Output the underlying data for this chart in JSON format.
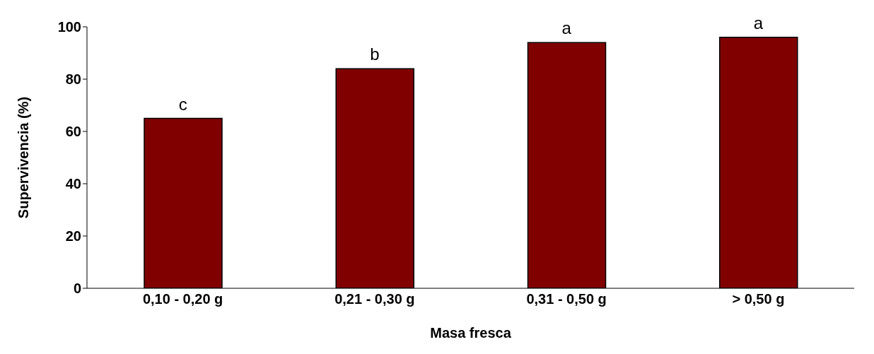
{
  "chart_data": {
    "type": "bar",
    "xlabel": "Masa fresca",
    "ylabel": "Supervivencia (%)",
    "categories": [
      "0,10 - 0,20 g",
      "0,21 - 0,30 g",
      "0,31 - 0,50 g",
      "> 0,50 g"
    ],
    "values": [
      65,
      84,
      94,
      96
    ],
    "color": "#800000",
    "ylim": [
      0,
      100
    ],
    "yticks": [
      0,
      20,
      40,
      60,
      80,
      100
    ],
    "grid": false,
    "legend": false,
    "annotations": [
      {
        "text": "c",
        "x": "0,10 - 0,20 g",
        "y": 65
      },
      {
        "text": "b",
        "x": "0,21 - 0,30 g",
        "y": 84
      },
      {
        "text": "a",
        "x": "0,31 - 0,50 g",
        "y": 94
      },
      {
        "text": "a",
        "x": "> 0,50 g",
        "y": 96
      }
    ]
  }
}
